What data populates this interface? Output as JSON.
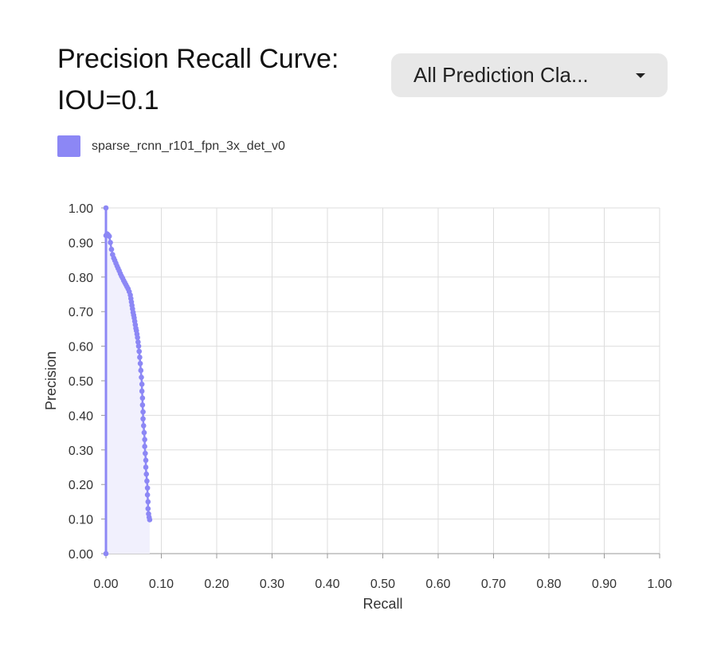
{
  "header": {
    "title": "Precision Recall Curve: IOU=0.1",
    "dropdown_label": "All Prediction Cla..."
  },
  "colors": {
    "series": "#8c87f5",
    "fill": "#f1f0fd",
    "grid": "#dddddd"
  },
  "chart_data": {
    "type": "line",
    "xlabel": "Recall",
    "ylabel": "Precision",
    "xlim": [
      0,
      1
    ],
    "ylim": [
      0,
      1
    ],
    "grid": true,
    "legend_position": "top-left",
    "x_ticks": [
      "0.00",
      "0.10",
      "0.20",
      "0.30",
      "0.40",
      "0.50",
      "0.60",
      "0.70",
      "0.80",
      "0.90",
      "1.00"
    ],
    "y_ticks": [
      "0.00",
      "0.10",
      "0.20",
      "0.30",
      "0.40",
      "0.50",
      "0.60",
      "0.70",
      "0.80",
      "0.90",
      "1.00"
    ],
    "series": [
      {
        "name": "sparse_rcnn_r101_fpn_3x_det_v0",
        "points": [
          [
            0.0,
            1.0
          ],
          [
            0.0,
            0.92
          ],
          [
            0.002,
            0.925
          ],
          [
            0.004,
            0.922
          ],
          [
            0.006,
            0.918
          ],
          [
            0.008,
            0.9
          ],
          [
            0.01,
            0.88
          ],
          [
            0.012,
            0.865
          ],
          [
            0.014,
            0.855
          ],
          [
            0.016,
            0.848
          ],
          [
            0.018,
            0.84
          ],
          [
            0.02,
            0.832
          ],
          [
            0.022,
            0.825
          ],
          [
            0.024,
            0.818
          ],
          [
            0.026,
            0.81
          ],
          [
            0.028,
            0.803
          ],
          [
            0.03,
            0.797
          ],
          [
            0.032,
            0.79
          ],
          [
            0.034,
            0.784
          ],
          [
            0.036,
            0.778
          ],
          [
            0.038,
            0.772
          ],
          [
            0.04,
            0.766
          ],
          [
            0.042,
            0.758
          ],
          [
            0.044,
            0.748
          ],
          [
            0.045,
            0.738
          ],
          [
            0.046,
            0.728
          ],
          [
            0.047,
            0.718
          ],
          [
            0.048,
            0.708
          ],
          [
            0.049,
            0.698
          ],
          [
            0.05,
            0.69
          ],
          [
            0.051,
            0.682
          ],
          [
            0.052,
            0.672
          ],
          [
            0.053,
            0.662
          ],
          [
            0.054,
            0.652
          ],
          [
            0.055,
            0.645
          ],
          [
            0.056,
            0.635
          ],
          [
            0.057,
            0.625
          ],
          [
            0.058,
            0.612
          ],
          [
            0.059,
            0.6
          ],
          [
            0.06,
            0.585
          ],
          [
            0.061,
            0.568
          ],
          [
            0.062,
            0.55
          ],
          [
            0.063,
            0.53
          ],
          [
            0.064,
            0.51
          ],
          [
            0.065,
            0.49
          ],
          [
            0.065,
            0.47
          ],
          [
            0.066,
            0.45
          ],
          [
            0.066,
            0.43
          ],
          [
            0.067,
            0.41
          ],
          [
            0.067,
            0.39
          ],
          [
            0.068,
            0.37
          ],
          [
            0.069,
            0.35
          ],
          [
            0.07,
            0.33
          ],
          [
            0.07,
            0.31
          ],
          [
            0.071,
            0.29
          ],
          [
            0.072,
            0.27
          ],
          [
            0.072,
            0.25
          ],
          [
            0.073,
            0.23
          ],
          [
            0.074,
            0.21
          ],
          [
            0.075,
            0.19
          ],
          [
            0.075,
            0.17
          ],
          [
            0.076,
            0.15
          ],
          [
            0.076,
            0.13
          ],
          [
            0.077,
            0.115
          ],
          [
            0.078,
            0.105
          ],
          [
            0.079,
            0.098
          ],
          [
            0.0,
            0.0
          ]
        ]
      }
    ]
  }
}
